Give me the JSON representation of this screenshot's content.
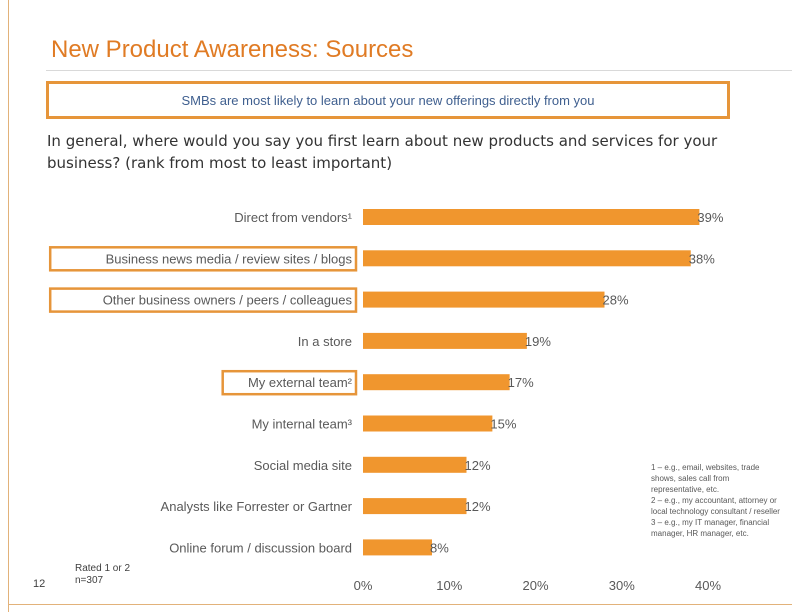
{
  "title": "New Product Awareness: Sources",
  "banner": "SMBs are most likely to learn about your new offerings directly from you",
  "question": "In general, where would you say you first learn about new products and services for your business? (rank from most to least important)",
  "colors": {
    "bar": "#f0962e",
    "title": "#e07b24",
    "highlight_border": "#e6953a"
  },
  "chart_data": {
    "type": "bar",
    "orientation": "horizontal",
    "categories": [
      "Direct from vendors¹",
      "Business news media / review sites / blogs",
      "Other business owners / peers / colleagues",
      "In a store",
      "My external team²",
      "My internal team³",
      "Social media site",
      "Analysts like Forrester or Gartner",
      "Online forum / discussion board"
    ],
    "values": [
      39,
      38,
      28,
      19,
      17,
      15,
      12,
      12,
      8
    ],
    "value_labels": [
      "39%",
      "38%",
      "28%",
      "19%",
      "17%",
      "15%",
      "12%",
      "12%",
      "8%"
    ],
    "highlighted": [
      false,
      true,
      true,
      false,
      true,
      false,
      false,
      false,
      false
    ],
    "xlim": [
      0,
      40
    ],
    "xticks": [
      0,
      10,
      20,
      30,
      40
    ],
    "xtick_labels": [
      "0%",
      "10%",
      "20%",
      "30%",
      "40%"
    ],
    "xlabel": "",
    "ylabel": ""
  },
  "footnotes": {
    "note1": "1 – e.g., email, websites, trade shows, sales call from representative, etc.",
    "note2": "2 – e.g., my accountant, attorney or local technology consultant / reseller",
    "note3": "3 – e.g., my IT manager, financial manager, HR manager, etc."
  },
  "footer": {
    "page_number": "12",
    "rated_line1": "Rated 1 or 2",
    "rated_line2": "n=307"
  }
}
